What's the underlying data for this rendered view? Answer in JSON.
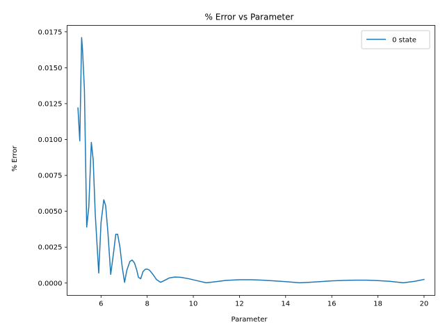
{
  "chart_data": {
    "type": "line",
    "title": "% Error vs Parameter",
    "xlabel": "Parameter",
    "ylabel": "% Error",
    "xlim": [
      4.53,
      20.47
    ],
    "ylim": [
      -0.00086,
      0.01795
    ],
    "xticks": [
      6,
      8,
      10,
      12,
      14,
      16,
      18,
      20
    ],
    "xtick_labels": [
      "6",
      "8",
      "10",
      "12",
      "14",
      "16",
      "18",
      "20"
    ],
    "yticks": [
      0.0,
      0.0025,
      0.005,
      0.0075,
      0.01,
      0.0125,
      0.015,
      0.0175
    ],
    "ytick_labels": [
      "0.0000",
      "0.0025",
      "0.0050",
      "0.0075",
      "0.0100",
      "0.0125",
      "0.0150",
      "0.0175"
    ],
    "grid": false,
    "legend_position": "upper-right",
    "color": "#1f77b4",
    "series": [
      {
        "name": "0 state",
        "x": [
          5.0,
          5.08,
          5.16,
          5.2,
          5.28,
          5.38,
          5.47,
          5.58,
          5.66,
          5.75,
          5.9,
          6.0,
          6.12,
          6.2,
          6.3,
          6.42,
          6.55,
          6.64,
          6.72,
          6.82,
          6.92,
          7.02,
          7.12,
          7.25,
          7.35,
          7.45,
          7.55,
          7.62,
          7.72,
          7.82,
          7.92,
          8.0,
          8.1,
          8.25,
          8.4,
          8.58,
          8.75,
          8.95,
          9.2,
          9.45,
          9.8,
          10.2,
          10.55,
          10.9,
          11.4,
          12.0,
          12.5,
          13.0,
          13.5,
          14.0,
          14.6,
          15.0,
          15.5,
          16.0,
          16.5,
          17.0,
          17.5,
          18.0,
          18.5,
          19.1,
          19.6,
          20.0
        ],
        "y": [
          0.0122,
          0.0099,
          0.0171,
          0.0162,
          0.0135,
          0.0039,
          0.0053,
          0.0098,
          0.0086,
          0.0048,
          0.0007,
          0.0042,
          0.0058,
          0.0054,
          0.0035,
          0.0006,
          0.0022,
          0.0034,
          0.0034,
          0.0025,
          0.0011,
          5e-05,
          0.0009,
          0.0015,
          0.0016,
          0.0014,
          0.0009,
          0.0004,
          0.0003,
          0.0008,
          0.00096,
          0.00097,
          0.0009,
          0.0006,
          0.00025,
          5e-05,
          0.00018,
          0.00035,
          0.00042,
          0.0004,
          0.0003,
          0.00015,
          2e-05,
          8e-05,
          0.00018,
          0.00023,
          0.00023,
          0.0002,
          0.00015,
          0.0001,
          2e-05,
          5e-05,
          0.0001,
          0.00015,
          0.00018,
          0.0002,
          0.0002,
          0.00017,
          0.00012,
          2e-05,
          0.00012,
          0.00025
        ]
      }
    ]
  }
}
